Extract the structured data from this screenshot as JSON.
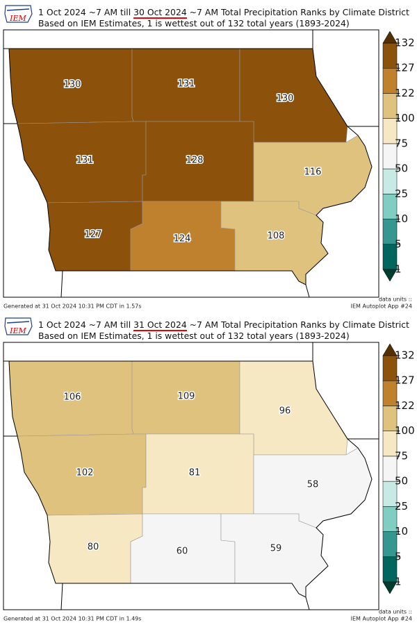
{
  "logo_text": "IEM",
  "colorbar": {
    "levels": [
      1,
      5,
      10,
      25,
      50,
      75,
      100,
      122,
      127,
      132
    ],
    "colors": [
      "#01665e",
      "#35978f",
      "#80cdc1",
      "#c7eae5",
      "#f5f5f5",
      "#f6e8c3",
      "#dfc27d",
      "#bf812d",
      "#8c510a"
    ],
    "under_color": "#003c30",
    "over_color": "#543005"
  },
  "panels": [
    {
      "title_start": "1 Oct 2024 ~7 AM till",
      "title_date": "30 Oct 2024",
      "title_end": "~7 AM Total Precipitation Ranks by Climate District",
      "subtitle": "Based on IEM Estimates, 1 is wettest out of 132 total years (1893-2024)",
      "district_ranks": [
        130,
        131,
        130,
        131,
        128,
        116,
        127,
        124,
        108
      ],
      "footer_left": "Generated at 31 Oct 2024 10:31 PM CDT in 1.57s",
      "units_label": "data units ::",
      "app_label": "IEM Autoplot App #24"
    },
    {
      "title_start": "1 Oct 2024 ~7 AM till",
      "title_date": "31 Oct 2024",
      "title_end": "~7 AM Total Precipitation Ranks by Climate District",
      "subtitle": "Based on IEM Estimates, 1 is wettest out of 132 total years (1893-2024)",
      "district_ranks": [
        106,
        109,
        96,
        102,
        81,
        58,
        80,
        60,
        59
      ],
      "footer_left": "Generated at 31 Oct 2024 10:31 PM CDT in 1.49s",
      "units_label": "data units ::",
      "app_label": "IEM Autoplot App #24"
    }
  ]
}
